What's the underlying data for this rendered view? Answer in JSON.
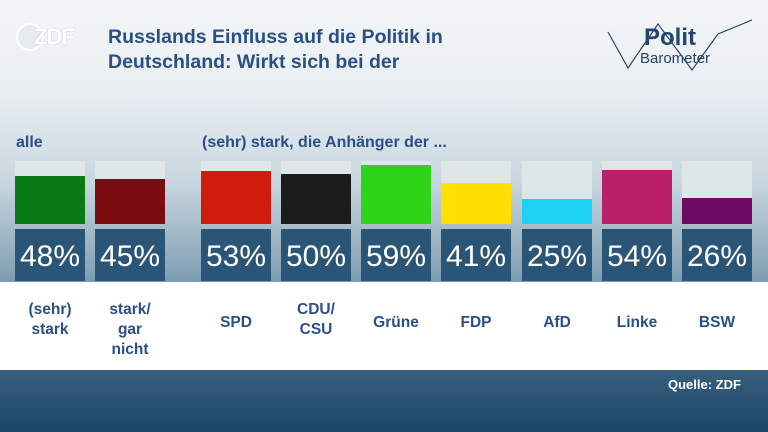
{
  "header": {
    "logo_text": "ZDF",
    "title_line1": "Russlands Einfluss auf die Politik in",
    "title_line2": "Deutschland: Wirkt sich bei der",
    "brand_line1": "Polit",
    "brand_line2": "Barometer"
  },
  "groups": {
    "all_label": "alle",
    "parties_label": "(sehr) stark, die Anhänger der ..."
  },
  "source": "Quelle: ZDF",
  "colors": {
    "title": "#2a4f86",
    "track": "#dfe6ea",
    "pct_box": "#2b5577"
  },
  "chart_data": {
    "type": "bar",
    "title": "Russlands Einfluss auf die Politik in Deutschland: Wirkt sich bei der",
    "categories": [
      "(sehr) stark",
      "stark/ gar nicht",
      "SPD",
      "CDU/ CSU",
      "Grüne",
      "FDP",
      "AfD",
      "Linke",
      "BSW"
    ],
    "category_lines": [
      [
        "(sehr)",
        "stark"
      ],
      [
        "stark/",
        "gar",
        "nicht"
      ],
      [
        "SPD"
      ],
      [
        "CDU/",
        "CSU"
      ],
      [
        "Grüne"
      ],
      [
        "FDP"
      ],
      [
        "AfD"
      ],
      [
        "Linke"
      ],
      [
        "BSW"
      ]
    ],
    "values": [
      48,
      45,
      53,
      50,
      59,
      41,
      25,
      54,
      26
    ],
    "value_labels": [
      "48%",
      "45%",
      "53%",
      "50%",
      "59%",
      "41%",
      "25%",
      "54%",
      "26%"
    ],
    "colors": [
      "#0a7a14",
      "#7a0c12",
      "#d01c0c",
      "#1c1c1c",
      "#2ed417",
      "#ffe000",
      "#1ed2f5",
      "#b8206a",
      "#6c0a66"
    ],
    "ylim": [
      0,
      63
    ],
    "grid": false,
    "legend": "none"
  }
}
